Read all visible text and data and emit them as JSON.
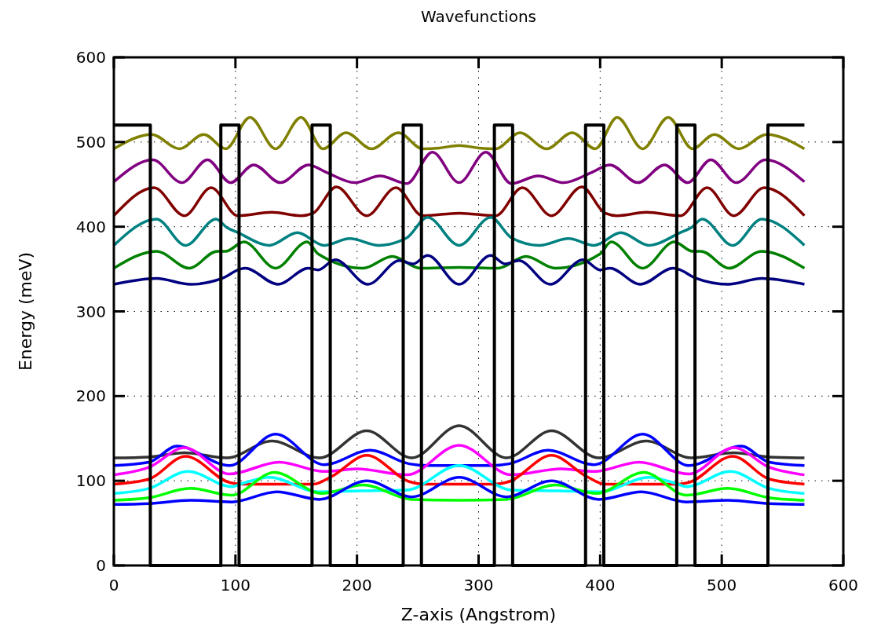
{
  "chart_data": {
    "type": "line",
    "title": "Wavefunctions",
    "xlabel": "Z-axis (Angstrom)",
    "ylabel": "Energy (meV)",
    "xlim": [
      0,
      600
    ],
    "ylim": [
      0,
      600
    ],
    "xticks": [
      0,
      100,
      200,
      300,
      400,
      500,
      600
    ],
    "yticks": [
      0,
      100,
      200,
      300,
      400,
      500,
      600
    ],
    "grid": true,
    "line_style": "solid",
    "series": [
      {
        "color": "#808000",
        "x": [
          0,
          31,
          54,
          74,
          92,
          112,
          133,
          154,
          172,
          191,
          212,
          234,
          254,
          268,
          284,
          300,
          314,
          334,
          356,
          377,
          396,
          414,
          435,
          456,
          476,
          494,
          514,
          537,
          568
        ],
        "values": [
          492,
          509,
          492,
          509,
          492,
          529,
          492,
          529,
          492,
          511,
          492,
          511,
          492,
          493,
          496,
          493,
          492,
          511,
          492,
          511,
          492,
          529,
          492,
          529,
          492,
          509,
          492,
          509,
          492
        ]
      },
      {
        "color": "#800080",
        "x": [
          0,
          32,
          56,
          77,
          96,
          115,
          137,
          160,
          175,
          198,
          219,
          241,
          262,
          284,
          306,
          327,
          349,
          370,
          393,
          408,
          431,
          453,
          472,
          491,
          512,
          536,
          568
        ],
        "values": [
          453,
          479,
          452,
          479,
          452,
          473,
          452,
          473,
          464,
          452,
          460,
          451,
          488,
          452,
          488,
          451,
          460,
          452,
          464,
          473,
          452,
          473,
          452,
          479,
          452,
          479,
          453
        ]
      },
      {
        "color": "#800000",
        "x": [
          0,
          33,
          58,
          80,
          102,
          130,
          154,
          164,
          183,
          208,
          232,
          254,
          284,
          314,
          336,
          360,
          385,
          404,
          414,
          438,
          466,
          488,
          510,
          535,
          568
        ],
        "values": [
          413,
          446,
          413,
          446,
          413,
          417,
          413,
          416,
          447,
          413,
          446,
          413,
          416,
          413,
          446,
          413,
          447,
          416,
          413,
          417,
          413,
          446,
          413,
          446,
          413
        ]
      },
      {
        "color": "#008080",
        "x": [
          0,
          35,
          59,
          84,
          93,
          102,
          128,
          151,
          173,
          194,
          218,
          241,
          258,
          284,
          310,
          327,
          350,
          374,
          395,
          417,
          440,
          466,
          475,
          484,
          509,
          533,
          568
        ],
        "values": [
          378,
          409,
          378,
          409,
          399,
          393,
          378,
          393,
          378,
          386,
          378,
          387,
          411,
          378,
          411,
          387,
          378,
          386,
          378,
          393,
          378,
          393,
          399,
          409,
          378,
          409,
          378
        ]
      },
      {
        "color": "#008000",
        "x": [
          0,
          35,
          62,
          85,
          92,
          107,
          133,
          159,
          168,
          205,
          229,
          252,
          284,
          316,
          339,
          363,
          400,
          409,
          435,
          461,
          476,
          483,
          506,
          533,
          568
        ],
        "values": [
          351,
          371,
          351,
          371,
          371,
          382,
          351,
          382,
          368,
          351,
          365,
          351,
          352,
          351,
          365,
          351,
          368,
          382,
          351,
          382,
          371,
          371,
          351,
          371,
          351
        ]
      },
      {
        "color": "#000080",
        "x": [
          0,
          35,
          63,
          89,
          104,
          108,
          135,
          160,
          168,
          182,
          209,
          235,
          246,
          258,
          284,
          310,
          322,
          333,
          359,
          386,
          400,
          408,
          433,
          460,
          464,
          479,
          505,
          533,
          568
        ],
        "values": [
          332,
          339,
          332,
          339,
          350,
          351,
          332,
          351,
          349,
          361,
          332,
          360,
          356,
          366,
          332,
          366,
          356,
          360,
          332,
          361,
          349,
          351,
          332,
          351,
          350,
          339,
          332,
          339,
          332
        ]
      },
      {
        "color": "#333333",
        "x": [
          0,
          29,
          58,
          93,
          130,
          169,
          208,
          245,
          284,
          323,
          360,
          399,
          438,
          475,
          510,
          539,
          568
        ],
        "values": [
          127,
          128,
          133,
          127,
          147,
          127,
          159,
          127,
          165,
          127,
          159,
          127,
          147,
          127,
          133,
          128,
          127
        ]
      },
      {
        "color": "#0000ff",
        "x": [
          0,
          29,
          52,
          95,
          133,
          173,
          211,
          243,
          258,
          284,
          310,
          325,
          357,
          395,
          435,
          473,
          516,
          539,
          568
        ],
        "values": [
          118,
          122,
          141,
          118,
          155,
          119,
          136,
          120,
          118,
          118,
          118,
          120,
          136,
          119,
          155,
          118,
          141,
          122,
          118
        ]
      },
      {
        "color": "#ff00ff",
        "x": [
          0,
          29,
          58,
          95,
          136,
          173,
          200,
          241,
          284,
          327,
          368,
          395,
          432,
          473,
          510,
          539,
          568
        ],
        "values": [
          107,
          116,
          139,
          108,
          122,
          111,
          114,
          107,
          142,
          107,
          114,
          111,
          122,
          108,
          139,
          116,
          107
        ]
      },
      {
        "color": "#ff0000",
        "x": [
          0,
          29,
          59,
          95,
          104,
          130,
          164,
          179,
          208,
          243,
          256,
          284,
          312,
          325,
          360,
          389,
          404,
          438,
          464,
          473,
          509,
          539,
          568
        ],
        "values": [
          96,
          102,
          129,
          98,
          96,
          96,
          96,
          105,
          130,
          99,
          96,
          96,
          96,
          99,
          130,
          105,
          96,
          96,
          96,
          98,
          129,
          102,
          96
        ]
      },
      {
        "color": "#00ffff",
        "x": [
          0,
          29,
          61,
          97,
          104,
          128,
          168,
          203,
          241,
          284,
          327,
          365,
          400,
          440,
          464,
          471,
          507,
          539,
          568
        ],
        "values": [
          85,
          91,
          111,
          93,
          96,
          104,
          87,
          88,
          89,
          118,
          89,
          88,
          87,
          104,
          96,
          93,
          111,
          91,
          85
        ]
      },
      {
        "color": "#00ff00",
        "x": [
          0,
          29,
          63,
          97,
          132,
          171,
          205,
          245,
          284,
          323,
          363,
          397,
          436,
          471,
          505,
          539,
          568
        ],
        "values": [
          77,
          80,
          91,
          83,
          110,
          85,
          95,
          78,
          77,
          78,
          95,
          85,
          110,
          83,
          91,
          80,
          77
        ]
      },
      {
        "color": "#0000ff",
        "x": [
          0,
          29,
          63,
          97,
          134,
          169,
          208,
          245,
          284,
          323,
          360,
          399,
          434,
          471,
          505,
          539,
          568
        ],
        "values": [
          72,
          73,
          77,
          75,
          87,
          78,
          100,
          81,
          104,
          81,
          100,
          78,
          87,
          75,
          77,
          73,
          72
        ]
      },
      {
        "type": "step",
        "color": "#000000",
        "x": [
          0,
          30,
          88,
          103,
          163,
          178,
          238,
          253,
          313,
          328,
          388,
          403,
          463,
          478,
          538,
          568
        ],
        "values": [
          520,
          0,
          520,
          0,
          520,
          0,
          520,
          0,
          520,
          0,
          520,
          0,
          520,
          0,
          520,
          520
        ]
      }
    ]
  }
}
